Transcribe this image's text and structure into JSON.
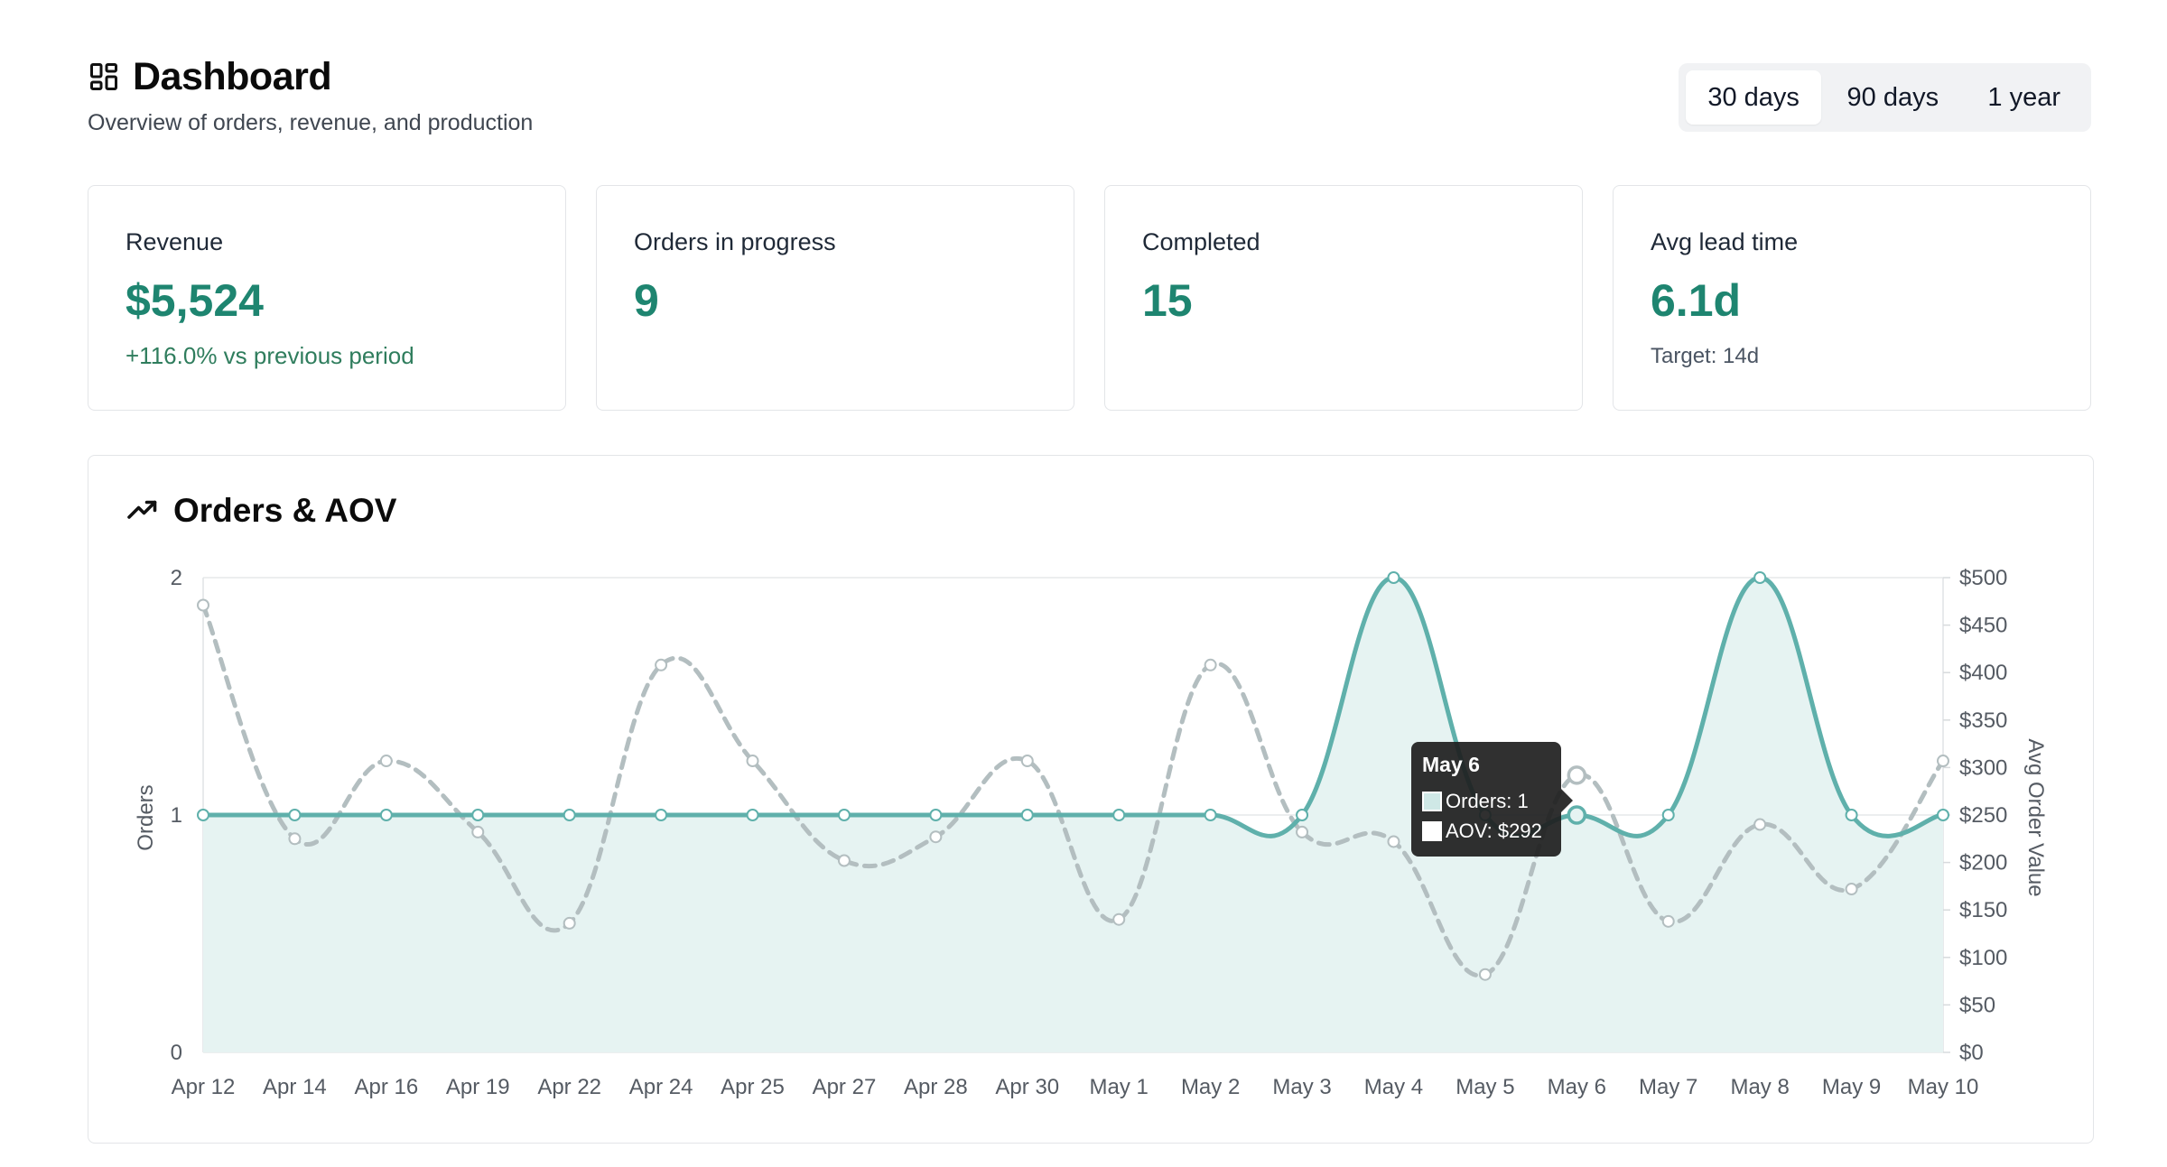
{
  "header": {
    "title": "Dashboard",
    "subtitle": "Overview of orders, revenue, and production",
    "icon": "dashboard-grid-icon"
  },
  "range": {
    "options": [
      "30 days",
      "90 days",
      "1 year"
    ],
    "selected": "30 days"
  },
  "cards": [
    {
      "label": "Revenue",
      "value": "$5,524",
      "note": "+116.0% vs previous period"
    },
    {
      "label": "Orders in progress",
      "value": "9",
      "note": ""
    },
    {
      "label": "Completed",
      "value": "15",
      "note": ""
    },
    {
      "label": "Avg lead time",
      "value": "6.1d",
      "note": "Target: 14d"
    }
  ],
  "colors": {
    "accent": "#1e8570",
    "orders_line": "#5fb0ab",
    "orders_fill": "#e6f3f2",
    "aov_line": "#b3bec0",
    "positive": "#2f7d5d"
  },
  "chart": {
    "title": "Orders & AOV",
    "icon": "trending-up-icon",
    "tooltip": {
      "title": "May 6",
      "orders": "Orders: 1",
      "aov": "AOV: $292"
    }
  },
  "chart_data": {
    "type": "line",
    "categories": [
      "Apr 12",
      "Apr 14",
      "Apr 16",
      "Apr 19",
      "Apr 22",
      "Apr 24",
      "Apr 25",
      "Apr 27",
      "Apr 28",
      "Apr 30",
      "May 1",
      "May 2",
      "May 3",
      "May 4",
      "May 5",
      "May 6",
      "May 7",
      "May 8",
      "May 9",
      "May 10"
    ],
    "series": [
      {
        "name": "Orders",
        "axis": "left",
        "style": "solid-filled",
        "values": [
          1,
          1,
          1,
          1,
          1,
          1,
          1,
          1,
          1,
          1,
          1,
          1,
          1,
          2,
          1,
          1,
          1,
          2,
          1,
          1
        ]
      },
      {
        "name": "AOV",
        "axis": "right",
        "style": "dashed",
        "values": [
          471,
          225,
          307,
          232,
          136,
          408,
          307,
          202,
          227,
          307,
          140,
          408,
          232,
          222,
          82,
          292,
          138,
          240,
          172,
          307
        ]
      }
    ],
    "ylabel": "Orders",
    "y2label": "Avg Order Value",
    "ylim": [
      0,
      2
    ],
    "y2lim": [
      0,
      500
    ],
    "yticks": [
      "0",
      "1",
      "2"
    ],
    "y2ticks": [
      "$0",
      "$50",
      "$100",
      "$150",
      "$200",
      "$250",
      "$300",
      "$350",
      "$400",
      "$450",
      "$500"
    ],
    "grid": true,
    "highlighted": "May 6"
  }
}
